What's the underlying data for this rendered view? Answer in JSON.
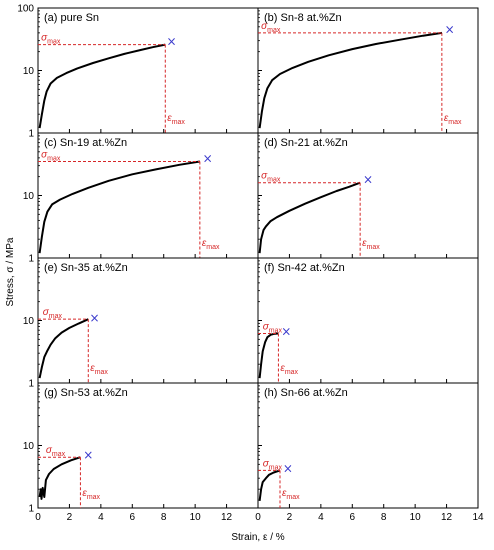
{
  "figure": {
    "xlabel": "Strain, ε / %",
    "ylabel": "Stress, σ / MPa",
    "sigma_symbol": "σ",
    "epsilon_symbol": "ε",
    "subscript": "max",
    "break_marker": "×"
  },
  "chart_data": [
    {
      "type": "line",
      "title": "(a) pure Sn",
      "yscale": "log",
      "ylim": [
        1,
        100
      ],
      "yticks": [
        "1",
        "10",
        "100"
      ],
      "xlim": [
        0,
        14
      ],
      "xticks": [],
      "max_point": {
        "strain": 8.1,
        "stress": 26
      },
      "fracture_point": {
        "strain": 8.5,
        "stress": 29
      },
      "curve": [
        [
          0.1,
          1.2
        ],
        [
          0.25,
          2
        ],
        [
          0.4,
          3.3
        ],
        [
          0.55,
          4.6
        ],
        [
          0.8,
          6.2
        ],
        [
          1.2,
          7.6
        ],
        [
          1.8,
          9.1
        ],
        [
          2.5,
          10.8
        ],
        [
          3.5,
          13.2
        ],
        [
          4.5,
          15.7
        ],
        [
          5.5,
          18.4
        ],
        [
          6.5,
          21.2
        ],
        [
          7.3,
          23.6
        ],
        [
          8.1,
          26
        ]
      ]
    },
    {
      "type": "line",
      "title": "(b) Sn-8 at.%Zn",
      "yscale": "log",
      "ylim": [
        1,
        100
      ],
      "yticks": [],
      "xlim": [
        0,
        14
      ],
      "xticks": [],
      "max_point": {
        "strain": 11.7,
        "stress": 40
      },
      "fracture_point": {
        "strain": 12.2,
        "stress": 45
      },
      "curve": [
        [
          0.1,
          1.2
        ],
        [
          0.25,
          2.2
        ],
        [
          0.4,
          3.6
        ],
        [
          0.6,
          5.2
        ],
        [
          0.9,
          7
        ],
        [
          1.4,
          8.8
        ],
        [
          2.2,
          11
        ],
        [
          3.2,
          13.8
        ],
        [
          4.5,
          17.5
        ],
        [
          6,
          22
        ],
        [
          7.5,
          26.5
        ],
        [
          9,
          31
        ],
        [
          10.5,
          36
        ],
        [
          11.7,
          40
        ]
      ]
    },
    {
      "type": "line",
      "title": "(c) Sn-19 at.%Zn",
      "yscale": "log",
      "ylim": [
        1,
        100
      ],
      "yticks": [
        "1",
        "10"
      ],
      "xlim": [
        0,
        14
      ],
      "xticks": [],
      "max_point": {
        "strain": 10.3,
        "stress": 35
      },
      "fracture_point": {
        "strain": 10.8,
        "stress": 39
      },
      "curve": [
        [
          0.1,
          1.2
        ],
        [
          0.25,
          2.2
        ],
        [
          0.4,
          3.8
        ],
        [
          0.6,
          5.5
        ],
        [
          0.9,
          7.2
        ],
        [
          1.4,
          8.6
        ],
        [
          2.2,
          10.6
        ],
        [
          3.2,
          13.3
        ],
        [
          4.5,
          17.2
        ],
        [
          6,
          21.8
        ],
        [
          7.5,
          26.2
        ],
        [
          9,
          31
        ],
        [
          10.3,
          35
        ]
      ]
    },
    {
      "type": "line",
      "title": "(d) Sn-21 at.%Zn",
      "yscale": "log",
      "ylim": [
        1,
        100
      ],
      "yticks": [],
      "xlim": [
        0,
        14
      ],
      "xticks": [],
      "max_point": {
        "strain": 6.5,
        "stress": 16
      },
      "fracture_point": {
        "strain": 7,
        "stress": 18
      },
      "curve": [
        [
          0.1,
          1.2
        ],
        [
          0.2,
          2
        ],
        [
          0.35,
          2.8
        ],
        [
          0.5,
          3.2
        ],
        [
          0.8,
          3.9
        ],
        [
          1.2,
          4.5
        ],
        [
          2,
          5.7
        ],
        [
          3,
          7.4
        ],
        [
          4,
          9.4
        ],
        [
          5,
          11.8
        ],
        [
          5.8,
          13.8
        ],
        [
          6.5,
          16
        ]
      ]
    },
    {
      "type": "line",
      "title": "(e) Sn-35 at.%Zn",
      "yscale": "log",
      "ylim": [
        1,
        100
      ],
      "yticks": [
        "1",
        "10"
      ],
      "xlim": [
        0,
        14
      ],
      "xticks": [],
      "max_point": {
        "strain": 3.2,
        "stress": 10.5
      },
      "fracture_point": {
        "strain": 3.6,
        "stress": 11
      },
      "slabel_x": 0.3,
      "curve": [
        [
          0.1,
          1.2
        ],
        [
          0.25,
          1.8
        ],
        [
          0.4,
          2.6
        ],
        [
          0.6,
          3.3
        ],
        [
          0.8,
          4.1
        ],
        [
          1.1,
          5.2
        ],
        [
          1.5,
          6.4
        ],
        [
          2,
          7.6
        ],
        [
          2.6,
          9
        ],
        [
          3.2,
          10.5
        ]
      ]
    },
    {
      "type": "line",
      "title": "(f) Sn-42 at.%Zn",
      "yscale": "log",
      "ylim": [
        1,
        100
      ],
      "yticks": [],
      "xlim": [
        0,
        14
      ],
      "xticks": [],
      "max_point": {
        "strain": 1.3,
        "stress": 6.2
      },
      "fracture_point": {
        "strain": 1.8,
        "stress": 6.7
      },
      "slabel_x": 0.3,
      "curve": [
        [
          0.1,
          1.2
        ],
        [
          0.2,
          2
        ],
        [
          0.3,
          3.2
        ],
        [
          0.45,
          4.5
        ],
        [
          0.6,
          5.4
        ],
        [
          0.8,
          5.9
        ],
        [
          1,
          6.1
        ],
        [
          1.3,
          6.2
        ]
      ]
    },
    {
      "type": "line",
      "title": "(g) Sn-53 at.%Zn",
      "yscale": "log",
      "ylim": [
        1,
        100
      ],
      "yticks": [
        "1",
        "10"
      ],
      "xlim": [
        0,
        14
      ],
      "xticks": [
        "0",
        "2",
        "4",
        "6",
        "8",
        "10",
        "12"
      ],
      "max_point": {
        "strain": 2.7,
        "stress": 6.5
      },
      "fracture_point": {
        "strain": 3.2,
        "stress": 7
      },
      "slabel_x": 0.5,
      "curve": [
        [
          0.1,
          1.5
        ],
        [
          0.18,
          2
        ],
        [
          0.22,
          1.4
        ],
        [
          0.3,
          2.1
        ],
        [
          0.4,
          1.5
        ],
        [
          0.5,
          2.8
        ],
        [
          0.7,
          3.5
        ],
        [
          1,
          4.2
        ],
        [
          1.5,
          5
        ],
        [
          2.1,
          5.8
        ],
        [
          2.7,
          6.5
        ]
      ]
    },
    {
      "type": "line",
      "title": "(h) Sn-66 at.%Zn",
      "yscale": "log",
      "ylim": [
        1,
        100
      ],
      "yticks": [],
      "xlim": [
        0,
        14
      ],
      "xticks": [
        "0",
        "2",
        "4",
        "6",
        "8",
        "10",
        "12",
        "14"
      ],
      "max_point": {
        "strain": 1.4,
        "stress": 4
      },
      "fracture_point": {
        "strain": 1.9,
        "stress": 4.3
      },
      "slabel_x": 0.3,
      "curve": [
        [
          0.1,
          1.3
        ],
        [
          0.2,
          2
        ],
        [
          0.3,
          2.6
        ],
        [
          0.5,
          3
        ],
        [
          0.7,
          3.4
        ],
        [
          1,
          3.7
        ],
        [
          1.4,
          4
        ]
      ]
    }
  ],
  "colors": {
    "curve": "#000000",
    "annotation": "#d62728",
    "marker": "#3a3acc",
    "frame": "#000000"
  }
}
